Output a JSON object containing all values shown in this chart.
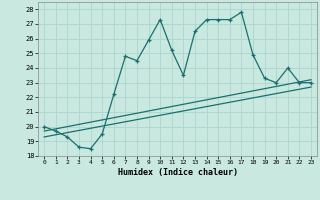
{
  "xlabel": "Humidex (Indice chaleur)",
  "xlim": [
    -0.5,
    23.5
  ],
  "ylim": [
    18,
    28.5
  ],
  "xticks": [
    0,
    1,
    2,
    3,
    4,
    5,
    6,
    7,
    8,
    9,
    10,
    11,
    12,
    13,
    14,
    15,
    16,
    17,
    18,
    19,
    20,
    21,
    22,
    23
  ],
  "yticks": [
    18,
    19,
    20,
    21,
    22,
    23,
    24,
    25,
    26,
    27,
    28
  ],
  "bg_color": "#c8e8e0",
  "grid_color": "#b0d8d0",
  "line_color": "#1a7070",
  "curve_x": [
    0,
    1,
    2,
    3,
    4,
    5,
    6,
    7,
    8,
    9,
    10,
    11,
    12,
    13,
    14,
    15,
    16,
    17,
    18,
    19,
    20,
    21,
    22,
    23
  ],
  "curve_y": [
    20.0,
    19.7,
    19.3,
    18.6,
    18.5,
    19.5,
    22.2,
    24.8,
    24.5,
    25.9,
    27.3,
    25.2,
    23.5,
    26.5,
    27.3,
    27.3,
    27.3,
    27.8,
    24.9,
    23.3,
    23.0,
    24.0,
    23.0,
    23.0
  ],
  "line1_x": [
    0,
    23
  ],
  "line1_y": [
    19.7,
    23.2
  ],
  "line2_x": [
    0,
    23
  ],
  "line2_y": [
    19.3,
    22.7
  ],
  "marker": "+"
}
